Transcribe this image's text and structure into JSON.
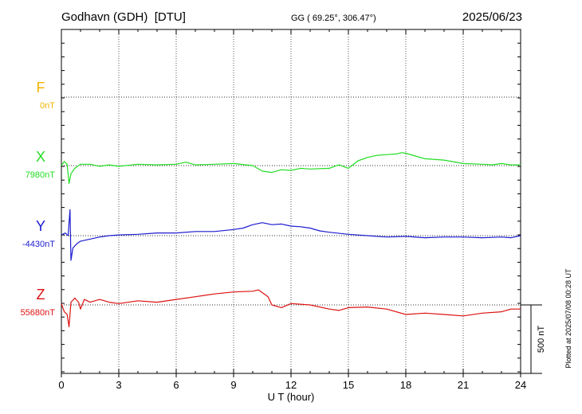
{
  "header": {
    "station": "Godhavn (GDH)  [DTU]",
    "coords": "GG ( 69.25°, 306.47°)",
    "date": "2025/06/23"
  },
  "plotted_note": "Plotted at 2025/07/08 00:28 UT",
  "scale_bar_label": "500 nT",
  "colors": {
    "F": "#f0b400",
    "X": "#22dd22",
    "Y": "#1c1cd0",
    "Z": "#dd1111"
  },
  "chart_data": {
    "type": "line",
    "title": "Godhavn (GDH)  [DTU]",
    "xlabel": "U T (hour)",
    "ylabel": "",
    "xlim": [
      0,
      24
    ],
    "x_ticks": [
      "0",
      "3",
      "6",
      "9",
      "12",
      "15",
      "18",
      "21",
      "24"
    ],
    "grid": true,
    "scale_nT": 500,
    "series": [
      {
        "name": "F",
        "baseline_label": "0nT",
        "baseline_nT": 0,
        "x": [],
        "y": []
      },
      {
        "name": "X",
        "baseline_label": "7980nT",
        "baseline_nT": 7980,
        "x": [
          0,
          0.15,
          0.3,
          0.4,
          0.5,
          0.7,
          1,
          1.5,
          2,
          2.5,
          3,
          4,
          5,
          6,
          6.5,
          7,
          8,
          9,
          10,
          10.5,
          11,
          11.5,
          12,
          12.5,
          13,
          14,
          14.5,
          15,
          15.5,
          16,
          16.5,
          17,
          17.5,
          17.8,
          18,
          18.5,
          19,
          20,
          21,
          22,
          22.5,
          23,
          23.5,
          24
        ],
        "y": [
          7980,
          8010,
          7990,
          7850,
          7920,
          7960,
          7990,
          7990,
          7975,
          7985,
          7975,
          7990,
          7985,
          7990,
          8005,
          7985,
          7990,
          7995,
          7980,
          7940,
          7930,
          7950,
          7945,
          7960,
          7955,
          7960,
          7985,
          7960,
          8015,
          8040,
          8055,
          8060,
          8065,
          8075,
          8070,
          8050,
          8030,
          8020,
          7995,
          7990,
          7985,
          7995,
          7985,
          7985
        ]
      },
      {
        "name": "Y",
        "baseline_label": "-4430nT",
        "baseline_nT": -4430,
        "x": [
          0,
          0.2,
          0.35,
          0.45,
          0.5,
          0.6,
          0.8,
          1,
          1.5,
          2,
          2.5,
          3,
          4,
          5,
          6,
          7,
          8,
          9,
          9.5,
          10,
          10.5,
          11,
          11.5,
          12,
          12.5,
          13,
          13.5,
          14,
          15,
          16,
          17,
          18,
          19,
          20,
          21,
          22,
          23,
          23.5,
          24
        ],
        "y": [
          -4425,
          -4410,
          -4430,
          -4240,
          -4610,
          -4520,
          -4490,
          -4470,
          -4455,
          -4440,
          -4430,
          -4425,
          -4420,
          -4410,
          -4410,
          -4400,
          -4400,
          -4385,
          -4375,
          -4350,
          -4335,
          -4350,
          -4345,
          -4360,
          -4365,
          -4375,
          -4395,
          -4405,
          -4420,
          -4430,
          -4440,
          -4435,
          -4445,
          -4440,
          -4440,
          -4445,
          -4440,
          -4445,
          -4430
        ]
      },
      {
        "name": "Z",
        "baseline_label": "55680nT",
        "baseline_nT": 55680,
        "x": [
          0,
          0.15,
          0.3,
          0.4,
          0.5,
          0.7,
          0.9,
          1,
          1.2,
          1.5,
          2,
          2.5,
          3,
          4,
          5,
          6,
          7,
          8,
          9,
          10,
          10.3,
          10.8,
          11,
          11.5,
          12,
          13,
          14,
          14.5,
          15,
          16,
          17,
          18,
          19,
          20,
          21,
          22,
          23,
          23.5,
          24
        ],
        "y": [
          55690,
          55630,
          55610,
          55520,
          55700,
          55730,
          55700,
          55650,
          55720,
          55700,
          55720,
          55700,
          55690,
          55710,
          55700,
          55720,
          55740,
          55760,
          55775,
          55780,
          55790,
          55740,
          55680,
          55660,
          55690,
          55680,
          55650,
          55640,
          55660,
          55665,
          55650,
          55610,
          55620,
          55610,
          55600,
          55620,
          55630,
          55650,
          55650
        ]
      }
    ]
  }
}
